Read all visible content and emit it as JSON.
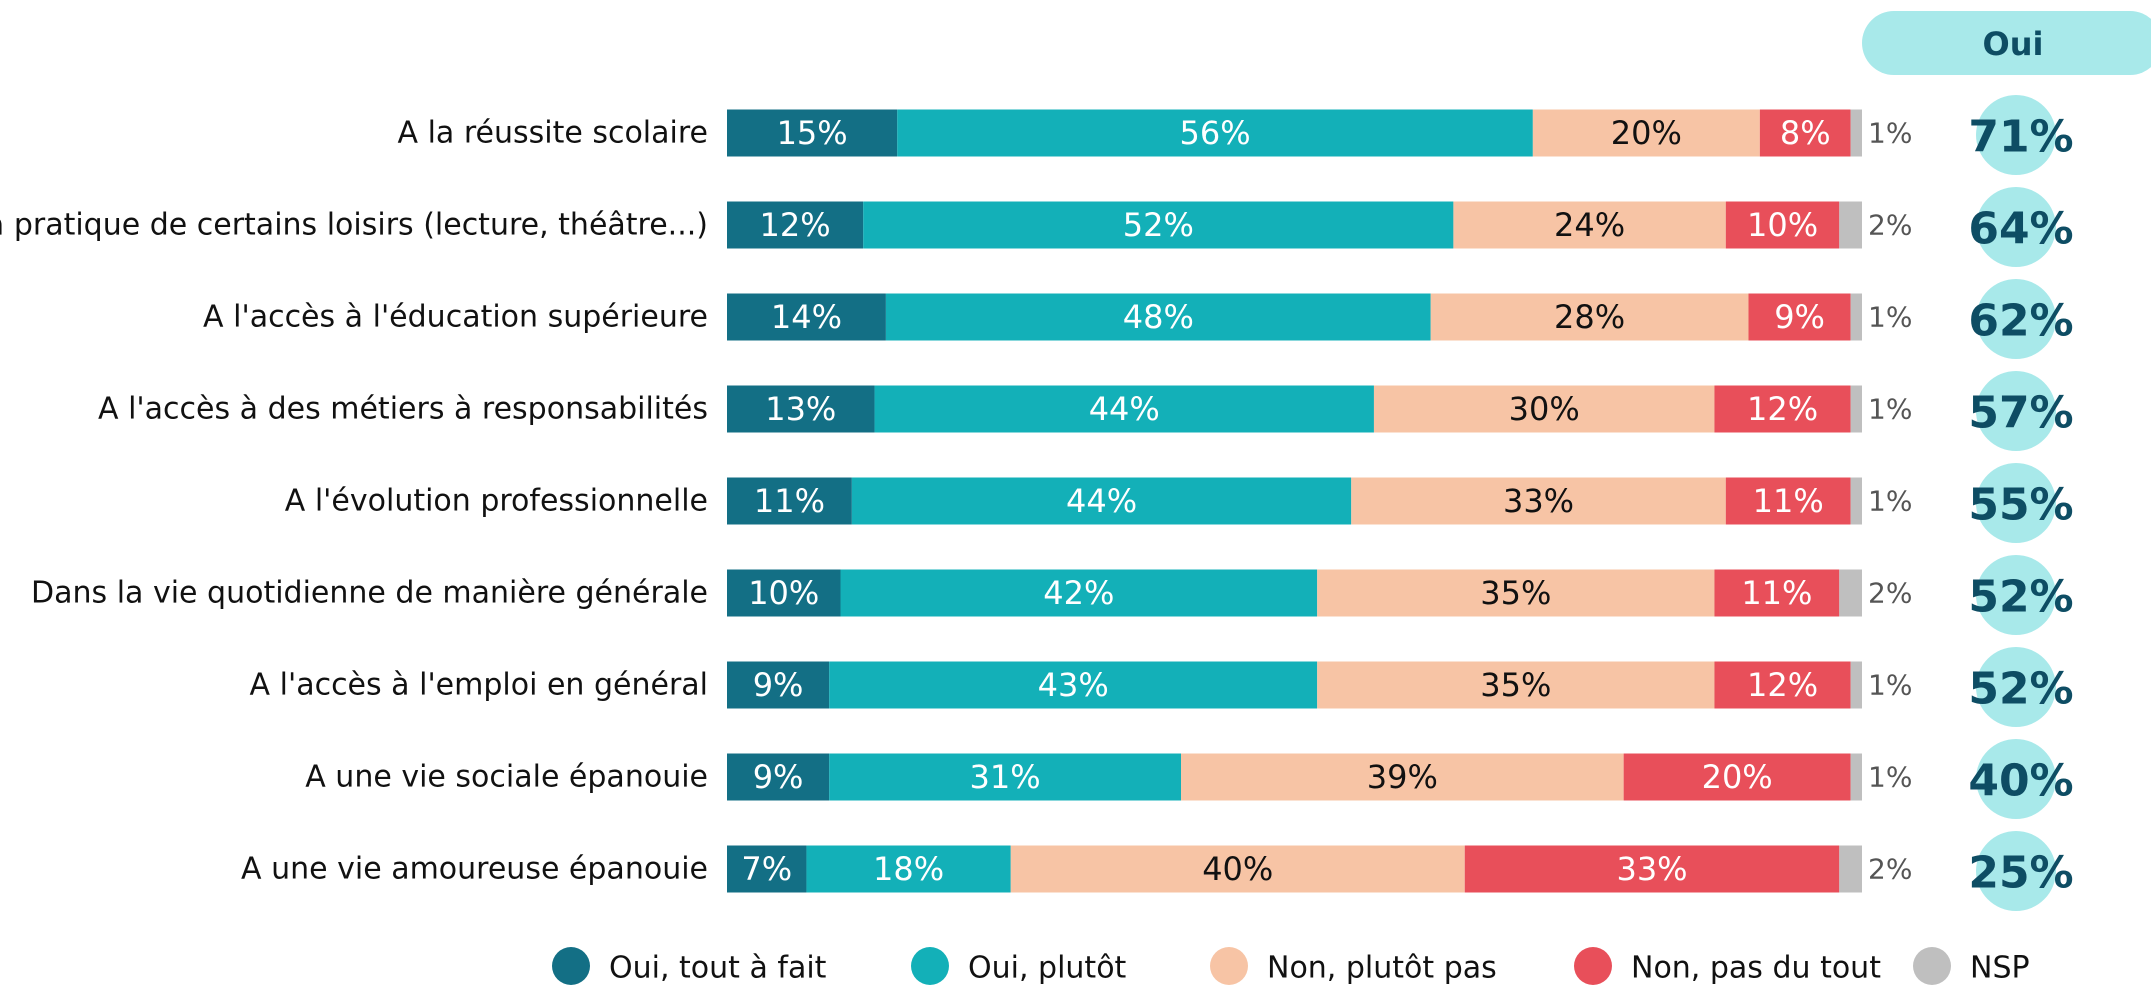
{
  "chart_data": {
    "type": "stacked_bar_horizontal",
    "categories": [
      "A la réussite scolaire",
      "A la pratique de certains loisirs (lecture, théâtre...)",
      "A l'accès à l'éducation supérieure",
      "A l'accès à des métiers à responsabilités",
      "A l'évolution professionnelle",
      "Dans la vie quotidienne de manière générale",
      "A l'accès à l'emploi en général",
      "A une vie sociale épanouie",
      "A une vie amoureuse épanouie"
    ],
    "xlim": [
      0,
      100
    ],
    "series": [
      {
        "name": "Oui, tout à fait",
        "color": "#136f85",
        "label_color": "#ffffff",
        "values": [
          15,
          12,
          14,
          13,
          11,
          10,
          9,
          9,
          7
        ],
        "value_labels": [
          "15%",
          "12%",
          "14%",
          "13%",
          "11%",
          "10%",
          "9%",
          "9%",
          "7%"
        ]
      },
      {
        "name": "Oui, plutôt",
        "color": "#13b0b8",
        "label_color": "#ffffff",
        "values": [
          56,
          52,
          48,
          44,
          44,
          42,
          43,
          31,
          18
        ],
        "value_labels": [
          "56%",
          "52%",
          "48%",
          "44%",
          "44%",
          "42%",
          "43%",
          "31%",
          "18%"
        ]
      },
      {
        "name": "Non, plutôt pas",
        "color": "#f7c4a5",
        "label_color": "#111111",
        "values": [
          20,
          24,
          28,
          30,
          33,
          35,
          35,
          39,
          40
        ],
        "value_labels": [
          "20%",
          "24%",
          "28%",
          "30%",
          "33%",
          "35%",
          "35%",
          "39%",
          "40%"
        ]
      },
      {
        "name": "Non, pas du tout",
        "color": "#e84f5a",
        "label_color": "#ffffff",
        "values": [
          8,
          10,
          9,
          12,
          11,
          11,
          12,
          20,
          33
        ],
        "value_labels": [
          "8%",
          "10%",
          "9%",
          "12%",
          "11%",
          "11%",
          "12%",
          "20%",
          "33%"
        ]
      },
      {
        "name": "NSP",
        "color": "#bfbfbf",
        "label_color": "#555555",
        "values": [
          1,
          2,
          1,
          1,
          1,
          2,
          1,
          1,
          2
        ],
        "value_labels": [
          "1%",
          "2%",
          "1%",
          "1%",
          "1%",
          "2%",
          "1%",
          "1%",
          "2%"
        ]
      }
    ],
    "totals": {
      "name": "Oui",
      "color": "#0e4d64",
      "values": [
        71,
        64,
        62,
        57,
        55,
        52,
        52,
        40,
        25
      ],
      "value_labels": [
        "71%",
        "64%",
        "62%",
        "57%",
        "55%",
        "52%",
        "52%",
        "40%",
        "25%"
      ]
    }
  }
}
